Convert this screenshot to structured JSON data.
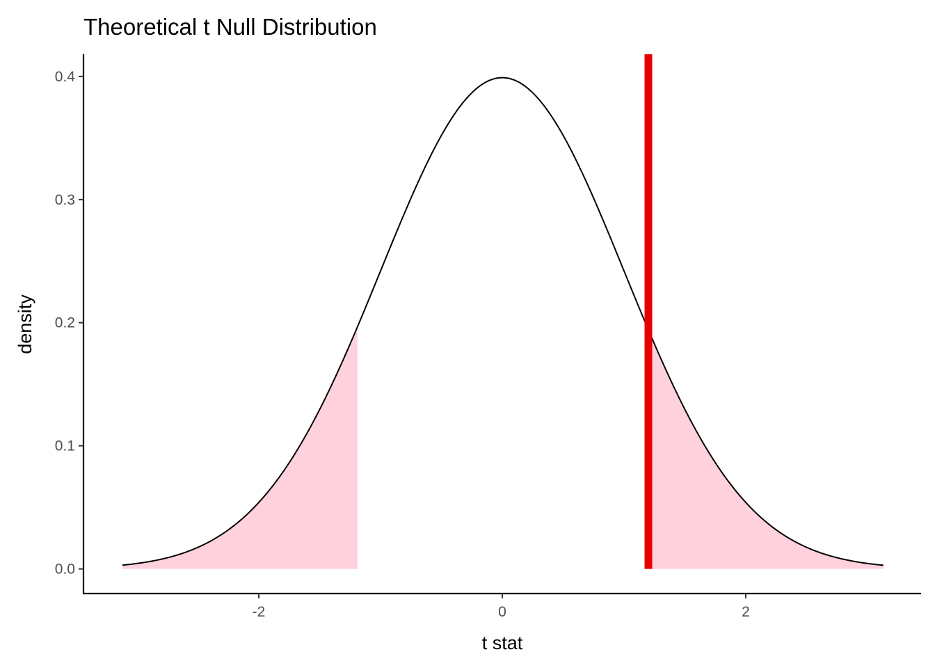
{
  "chart_data": {
    "type": "area",
    "title": "Theoretical t Null Distribution",
    "xlabel": "t stat",
    "ylabel": "density",
    "xlim": [
      -3.44,
      3.44
    ],
    "ylim": [
      -0.02,
      0.418
    ],
    "x_range_curve": [
      -3.12,
      3.13
    ],
    "x_ticks": [
      -2,
      0,
      2
    ],
    "x_tick_labels": [
      "-2",
      "0",
      "2"
    ],
    "y_ticks": [
      0.0,
      0.1,
      0.2,
      0.3,
      0.4
    ],
    "y_tick_labels": [
      "0.0",
      "0.1",
      "0.2",
      "0.3",
      "0.4"
    ],
    "grid": false,
    "distribution": "t (approx. standard normal)",
    "peak_density": 0.399,
    "observed_stat": 1.2,
    "shaded_regions": [
      [
        -3.12,
        -1.19
      ],
      [
        1.19,
        3.13
      ]
    ],
    "colors": {
      "curve": "#000000",
      "shade": "#FFD1DC",
      "observed_line": "#E60000"
    }
  }
}
